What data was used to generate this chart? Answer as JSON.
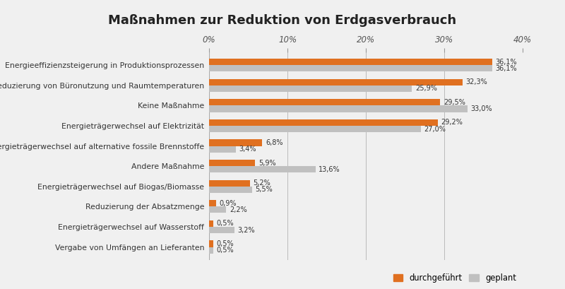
{
  "title": "Maßnahmen zur Reduktion von Erdgasverbrauch",
  "categories": [
    "Vergabe von Umfängen an Lieferanten",
    "Energieträgerwechsel auf Wasserstoff",
    "Reduzierung der Absatzmenge",
    "Energieträgerwechsel auf Biogas/Biomasse",
    "Andere Maßnahme",
    "Energieträgerwechsel auf alternative fossile Brennstoffe",
    "Energieträgerwechsel auf Elektrizität",
    "Keine Maßnahme",
    "Reduzierung von Büronutzung und Raumtemperaturen",
    "Energieeffizienzsteigerung in Produktionsprozessen"
  ],
  "durchgeführt": [
    0.5,
    0.5,
    0.9,
    5.2,
    5.9,
    6.8,
    29.2,
    29.5,
    32.3,
    36.1
  ],
  "geplant": [
    0.5,
    3.2,
    2.2,
    5.5,
    13.6,
    3.4,
    27.0,
    33.0,
    25.9,
    36.1
  ],
  "color_durchgeführt": "#E07020",
  "color_geplant": "#C0C0C0",
  "background_color": "#F0F0F0",
  "xlim": [
    0,
    40
  ],
  "xticks": [
    0,
    10,
    20,
    30,
    40
  ],
  "xticklabels": [
    "0%",
    "10%",
    "20%",
    "30%",
    "40%"
  ],
  "bar_height": 0.32,
  "title_fontsize": 13,
  "label_fontsize": 7.8,
  "tick_fontsize": 8.5,
  "value_fontsize": 7.0
}
